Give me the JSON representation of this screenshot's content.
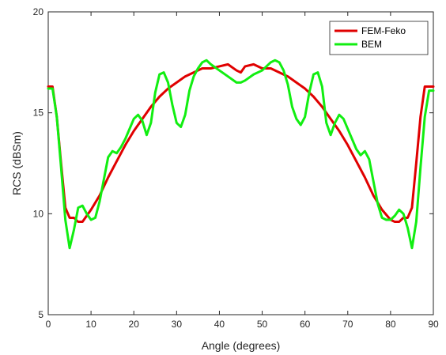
{
  "chart_data": {
    "type": "line",
    "title": "",
    "xlabel": "Angle (degrees)",
    "ylabel": "RCS (dBSm)",
    "xlim": [
      0,
      90
    ],
    "ylim": [
      5,
      20
    ],
    "xticks": [
      0,
      10,
      20,
      30,
      40,
      50,
      60,
      70,
      80,
      90
    ],
    "yticks": [
      5,
      10,
      15,
      20
    ],
    "grid": false,
    "legend_position": "top-right",
    "series": [
      {
        "name": "FEM-Feko",
        "color": "#e00000",
        "x": [
          0,
          1,
          2,
          3,
          4,
          5,
          6,
          7,
          8,
          9,
          10,
          12,
          14,
          16,
          18,
          20,
          22,
          24,
          26,
          28,
          30,
          32,
          34,
          36,
          38,
          40,
          42,
          44,
          45,
          46,
          48,
          50,
          52,
          54,
          56,
          58,
          60,
          62,
          64,
          66,
          68,
          70,
          72,
          74,
          76,
          78,
          80,
          81,
          82,
          83,
          84,
          85,
          86,
          87,
          88,
          89,
          90
        ],
        "y": [
          16.3,
          16.3,
          14.8,
          12.5,
          10.3,
          9.8,
          9.8,
          9.6,
          9.6,
          9.9,
          10.2,
          10.9,
          11.8,
          12.6,
          13.4,
          14.1,
          14.7,
          15.3,
          15.8,
          16.2,
          16.5,
          16.8,
          17.0,
          17.2,
          17.2,
          17.3,
          17.4,
          17.1,
          17.0,
          17.3,
          17.4,
          17.2,
          17.2,
          17.0,
          16.8,
          16.5,
          16.2,
          15.8,
          15.3,
          14.7,
          14.1,
          13.4,
          12.6,
          11.8,
          10.9,
          10.2,
          9.7,
          9.6,
          9.6,
          9.8,
          9.8,
          10.3,
          12.5,
          14.8,
          16.3,
          16.3,
          16.3
        ]
      },
      {
        "name": "BEM",
        "color": "#11ee11",
        "x": [
          0,
          1,
          2,
          3,
          4,
          5,
          6,
          7,
          8,
          9,
          10,
          11,
          12,
          13,
          14,
          15,
          16,
          17,
          18,
          20,
          21,
          22,
          23,
          24,
          25,
          26,
          27,
          28,
          29,
          30,
          31,
          32,
          33,
          34,
          35,
          36,
          37,
          38,
          40,
          42,
          44,
          45,
          46,
          48,
          50,
          52,
          53,
          54,
          55,
          56,
          57,
          58,
          59,
          60,
          61,
          62,
          63,
          64,
          65,
          66,
          67,
          68,
          69,
          70,
          72,
          73,
          74,
          75,
          76,
          77,
          78,
          79,
          80,
          81,
          82,
          83,
          84,
          85,
          86,
          87,
          88,
          89,
          90
        ],
        "y": [
          16.2,
          16.2,
          14.8,
          12.3,
          9.7,
          8.3,
          9.2,
          10.3,
          10.4,
          10.0,
          9.7,
          9.8,
          10.6,
          11.7,
          12.8,
          13.1,
          13.0,
          13.3,
          13.7,
          14.7,
          14.9,
          14.6,
          13.9,
          14.5,
          16.0,
          16.9,
          17.0,
          16.5,
          15.4,
          14.5,
          14.3,
          14.9,
          16.1,
          16.8,
          17.2,
          17.5,
          17.6,
          17.4,
          17.1,
          16.8,
          16.5,
          16.5,
          16.6,
          16.9,
          17.1,
          17.5,
          17.6,
          17.5,
          17.1,
          16.4,
          15.3,
          14.7,
          14.4,
          14.8,
          16.0,
          16.9,
          17.0,
          16.3,
          14.5,
          13.9,
          14.5,
          14.9,
          14.7,
          14.2,
          13.2,
          12.9,
          13.1,
          12.7,
          11.6,
          10.5,
          9.8,
          9.7,
          9.7,
          9.9,
          10.2,
          10.0,
          9.3,
          8.3,
          9.6,
          12.3,
          14.8,
          16.1,
          16.1
        ]
      }
    ]
  }
}
